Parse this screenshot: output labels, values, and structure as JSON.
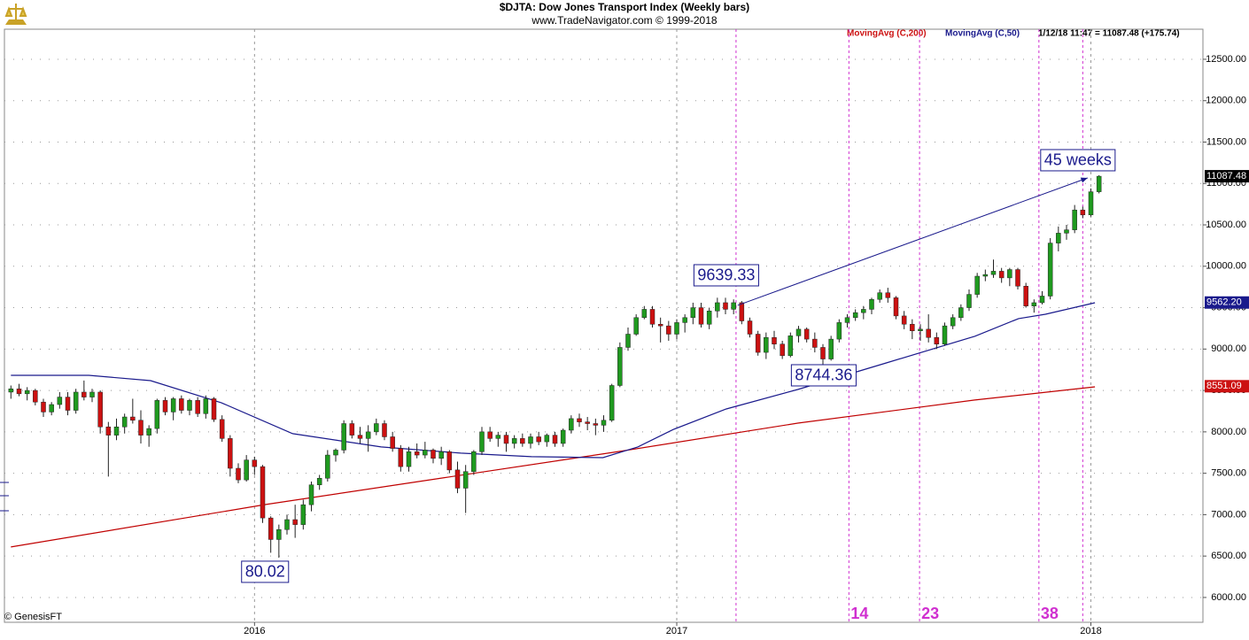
{
  "chart_data": {
    "type": "candlestick",
    "title": "$DJTA:  Dow Jones Transport Index  (Weekly bars)",
    "subtitle": "www.TradeNavigator.com © 1999-2018",
    "status": "1/12/18 11:47 = 11087.48 (+175.74)",
    "footer": "© GenesisFT",
    "up_color": "#1f9a1f",
    "down_color": "#cc1111",
    "grid": true,
    "xlim": [
      -0.8,
      146.8
    ],
    "xticks": [
      {
        "value": 30,
        "label": "2016"
      },
      {
        "value": 82,
        "label": "2017"
      },
      {
        "value": 133,
        "label": "2018"
      }
    ],
    "ylim": [
      5700,
      12863
    ],
    "yticks": [
      {
        "value": 6000,
        "label": "6000.00"
      },
      {
        "value": 6500,
        "label": "6500.00"
      },
      {
        "value": 7000,
        "label": "7000.00"
      },
      {
        "value": 7500,
        "label": "7500.00"
      },
      {
        "value": 8000,
        "label": "8000.00"
      },
      {
        "value": 8500,
        "label": "8500.00"
      },
      {
        "value": 9000,
        "label": "9000.00"
      },
      {
        "value": 9500,
        "label": "9500.00"
      },
      {
        "value": 10000,
        "label": "10000.00"
      },
      {
        "value": 10500,
        "label": "10500.00"
      },
      {
        "value": 11000,
        "label": "11000.00"
      },
      {
        "value": 11500,
        "label": "11500.00"
      },
      {
        "value": 12000,
        "label": "12000.00"
      },
      {
        "value": 12500,
        "label": "12500.00"
      }
    ],
    "x": [
      0,
      1,
      2,
      3,
      4,
      5,
      6,
      7,
      8,
      9,
      10,
      11,
      12,
      13,
      14,
      15,
      16,
      17,
      18,
      19,
      20,
      21,
      22,
      23,
      24,
      25,
      26,
      27,
      28,
      29,
      30,
      31,
      32,
      33,
      34,
      35,
      36,
      37,
      38,
      39,
      40,
      41,
      42,
      43,
      44,
      45,
      46,
      47,
      48,
      49,
      50,
      51,
      52,
      53,
      54,
      55,
      56,
      57,
      58,
      59,
      60,
      61,
      62,
      63,
      64,
      65,
      66,
      67,
      68,
      69,
      70,
      71,
      72,
      73,
      74,
      75,
      76,
      77,
      78,
      79,
      80,
      81,
      82,
      83,
      84,
      85,
      86,
      87,
      88,
      89,
      90,
      91,
      92,
      93,
      94,
      95,
      96,
      97,
      98,
      99,
      100,
      101,
      102,
      103,
      104,
      105,
      106,
      107,
      108,
      109,
      110,
      111,
      112,
      113,
      114,
      115,
      116,
      117,
      118,
      119,
      120,
      121,
      122,
      123,
      124,
      125,
      126,
      127,
      128,
      129,
      130,
      131,
      132,
      133,
      134
    ],
    "candles": [
      [
        8480,
        8560,
        8400,
        8520
      ],
      [
        8520,
        8580,
        8430,
        8460
      ],
      [
        8460,
        8540,
        8380,
        8500
      ],
      [
        8500,
        8520,
        8320,
        8360
      ],
      [
        8360,
        8400,
        8180,
        8240
      ],
      [
        8240,
        8360,
        8200,
        8330
      ],
      [
        8330,
        8480,
        8280,
        8420
      ],
      [
        8420,
        8480,
        8200,
        8260
      ],
      [
        8260,
        8520,
        8220,
        8480
      ],
      [
        8480,
        8620,
        8380,
        8420
      ],
      [
        8420,
        8520,
        8360,
        8480
      ],
      [
        8480,
        8500,
        7980,
        8060
      ],
      [
        8060,
        8120,
        7460,
        7960
      ],
      [
        7960,
        8160,
        7900,
        8060
      ],
      [
        8060,
        8220,
        7980,
        8180
      ],
      [
        8180,
        8400,
        8100,
        8140
      ],
      [
        8140,
        8260,
        7860,
        7960
      ],
      [
        7960,
        8080,
        7820,
        8040
      ],
      [
        8040,
        8400,
        7980,
        8380
      ],
      [
        8380,
        8420,
        8200,
        8240
      ],
      [
        8240,
        8420,
        8140,
        8400
      ],
      [
        8400,
        8440,
        8220,
        8260
      ],
      [
        8260,
        8400,
        8200,
        8380
      ],
      [
        8380,
        8420,
        8180,
        8220
      ],
      [
        8220,
        8440,
        8160,
        8400
      ],
      [
        8400,
        8420,
        8120,
        8150
      ],
      [
        8150,
        8200,
        7880,
        7920
      ],
      [
        7920,
        7960,
        7460,
        7560
      ],
      [
        7560,
        7620,
        7380,
        7420
      ],
      [
        7420,
        7720,
        7400,
        7660
      ],
      [
        7660,
        7700,
        7480,
        7580
      ],
      [
        7580,
        7600,
        6900,
        6960
      ],
      [
        6960,
        6980,
        6540,
        6700
      ],
      [
        6700,
        6880,
        6480,
        6820
      ],
      [
        6820,
        7000,
        6760,
        6940
      ],
      [
        6940,
        7120,
        6720,
        6880
      ],
      [
        6880,
        7180,
        6820,
        7120
      ],
      [
        7120,
        7400,
        7040,
        7360
      ],
      [
        7360,
        7480,
        7300,
        7440
      ],
      [
        7440,
        7780,
        7400,
        7720
      ],
      [
        7720,
        7800,
        7640,
        7780
      ],
      [
        7780,
        8140,
        7740,
        8100
      ],
      [
        8100,
        8140,
        7920,
        7960
      ],
      [
        7960,
        8060,
        7860,
        7920
      ],
      [
        7920,
        8080,
        7760,
        8000
      ],
      [
        8000,
        8160,
        7960,
        8100
      ],
      [
        8100,
        8140,
        7900,
        7940
      ],
      [
        7940,
        8000,
        7760,
        7800
      ],
      [
        7800,
        7840,
        7520,
        7580
      ],
      [
        7580,
        7820,
        7520,
        7760
      ],
      [
        7760,
        7860,
        7680,
        7720
      ],
      [
        7720,
        7880,
        7680,
        7780
      ],
      [
        7780,
        7800,
        7620,
        7680
      ],
      [
        7680,
        7820,
        7600,
        7760
      ],
      [
        7760,
        7780,
        7500,
        7540
      ],
      [
        7540,
        7640,
        7260,
        7320
      ],
      [
        7320,
        7600,
        7020,
        7520
      ],
      [
        7520,
        7780,
        7480,
        7760
      ],
      [
        7760,
        8060,
        7720,
        8000
      ],
      [
        8000,
        8060,
        7880,
        7920
      ],
      [
        7920,
        8000,
        7820,
        7960
      ],
      [
        7960,
        8000,
        7760,
        7860
      ],
      [
        7860,
        7960,
        7800,
        7920
      ],
      [
        7920,
        7980,
        7820,
        7860
      ],
      [
        7860,
        7980,
        7800,
        7940
      ],
      [
        7940,
        8000,
        7840,
        7880
      ],
      [
        7880,
        7980,
        7820,
        7960
      ],
      [
        7960,
        8000,
        7820,
        7860
      ],
      [
        7860,
        8040,
        7820,
        8020
      ],
      [
        8020,
        8200,
        7980,
        8160
      ],
      [
        8160,
        8220,
        8060,
        8120
      ],
      [
        8120,
        8180,
        8020,
        8100
      ],
      [
        8100,
        8160,
        7960,
        8080
      ],
      [
        8080,
        8200,
        8000,
        8140
      ],
      [
        8140,
        8580,
        8120,
        8560
      ],
      [
        8560,
        9080,
        8540,
        9020
      ],
      [
        9020,
        9260,
        8980,
        9180
      ],
      [
        9180,
        9420,
        9160,
        9380
      ],
      [
        9380,
        9520,
        9360,
        9480
      ],
      [
        9480,
        9520,
        9260,
        9300
      ],
      [
        9300,
        9380,
        9080,
        9280
      ],
      [
        9280,
        9340,
        9100,
        9180
      ],
      [
        9180,
        9360,
        9120,
        9320
      ],
      [
        9320,
        9420,
        9200,
        9380
      ],
      [
        9380,
        9560,
        9300,
        9500
      ],
      [
        9500,
        9560,
        9260,
        9300
      ],
      [
        9300,
        9500,
        9240,
        9460
      ],
      [
        9460,
        9620,
        9380,
        9560
      ],
      [
        9560,
        9620,
        9420,
        9480
      ],
      [
        9480,
        9600,
        9420,
        9560
      ],
      [
        9560,
        9580,
        9300,
        9340
      ],
      [
        9340,
        9380,
        9140,
        9180
      ],
      [
        9180,
        9220,
        8920,
        8960
      ],
      [
        8960,
        9200,
        8880,
        9140
      ],
      [
        9140,
        9220,
        9000,
        9060
      ],
      [
        9060,
        9100,
        8880,
        8920
      ],
      [
        8920,
        9200,
        8900,
        9160
      ],
      [
        9160,
        9280,
        9080,
        9240
      ],
      [
        9240,
        9260,
        9080,
        9120
      ],
      [
        9120,
        9200,
        8960,
        9020
      ],
      [
        9020,
        9060,
        8760,
        8880
      ],
      [
        8880,
        9160,
        8860,
        9120
      ],
      [
        9120,
        9360,
        9080,
        9320
      ],
      [
        9320,
        9420,
        9260,
        9380
      ],
      [
        9380,
        9480,
        9340,
        9440
      ],
      [
        9440,
        9520,
        9360,
        9480
      ],
      [
        9480,
        9620,
        9420,
        9600
      ],
      [
        9600,
        9720,
        9560,
        9680
      ],
      [
        9680,
        9740,
        9560,
        9620
      ],
      [
        9620,
        9640,
        9360,
        9400
      ],
      [
        9400,
        9460,
        9240,
        9300
      ],
      [
        9300,
        9360,
        9120,
        9220
      ],
      [
        9220,
        9300,
        9100,
        9240
      ],
      [
        9240,
        9420,
        9080,
        9140
      ],
      [
        9140,
        9200,
        9000,
        9060
      ],
      [
        9060,
        9320,
        9040,
        9280
      ],
      [
        9280,
        9420,
        9240,
        9380
      ],
      [
        9380,
        9540,
        9340,
        9500
      ],
      [
        9500,
        9720,
        9460,
        9660
      ],
      [
        9660,
        9920,
        9620,
        9880
      ],
      [
        9880,
        9960,
        9820,
        9900
      ],
      [
        9900,
        10080,
        9860,
        9940
      ],
      [
        9940,
        9980,
        9800,
        9860
      ],
      [
        9860,
        9980,
        9760,
        9960
      ],
      [
        9960,
        9980,
        9720,
        9760
      ],
      [
        9760,
        9800,
        9500,
        9520
      ],
      [
        9520,
        9600,
        9440,
        9560
      ],
      [
        9560,
        9700,
        9540,
        9640
      ],
      [
        9640,
        10340,
        9600,
        10280
      ],
      [
        10280,
        10480,
        10180,
        10400
      ],
      [
        10400,
        10500,
        10320,
        10440
      ],
      [
        10440,
        10740,
        10400,
        10680
      ],
      [
        10680,
        10720,
        10580,
        10620
      ],
      [
        10620,
        10940,
        10600,
        10900
      ],
      [
        10900,
        11100,
        10880,
        11087.48
      ]
    ],
    "lines": [
      {
        "name": "MovingAvg (C,200)",
        "color": "#c00000",
        "x": [
          0,
          31.4,
          53.2,
          75,
          96.9,
          118.7,
          133.5
        ],
        "values": [
          6610,
          7123,
          7444,
          7764,
          8106,
          8384,
          8544
        ]
      },
      {
        "name": "MovingAvg (C,50)",
        "color": "#1a1a8c",
        "x": [
          0,
          9.6,
          17.2,
          25.9,
          34.7,
          45.6,
          55.4,
          64.1,
          72.9,
          77.2,
          81.6,
          88.1,
          96.9,
          107.8,
          118.7,
          124.1,
          127.4,
          133.5
        ],
        "values": [
          8683,
          8683,
          8619,
          8352,
          7978,
          7818,
          7743,
          7700,
          7689,
          7818,
          8030,
          8277,
          8512,
          8833,
          9154,
          9368,
          9421,
          9560
        ]
      }
    ],
    "flags": [
      {
        "value": 11087.48,
        "label": "11087.48",
        "color": "#000000"
      },
      {
        "value": 9562.2,
        "label": "9562.20",
        "color": "#1a1a8c"
      },
      {
        "value": 8551.09,
        "label": "8551.09",
        "color": "#cc1111"
      }
    ],
    "annotations": [
      {
        "text": "9639.33",
        "x": 88.1,
        "y": 9891
      },
      {
        "text": "8744.36",
        "x": 100.1,
        "y": 8683
      },
      {
        "text": "80.02",
        "x": 31.3,
        "y": 6310
      },
      {
        "text": "45 weeks",
        "x": 131.4,
        "y": 11281
      }
    ],
    "arrow": {
      "x": [
        89.5,
        132.6
      ],
      "y": [
        9528,
        11067
      ]
    },
    "vlines": [
      {
        "x": 89.3
      },
      {
        "x": 103.2,
        "label": "14"
      },
      {
        "x": 111.9,
        "label": "23"
      },
      {
        "x": 126.6,
        "label": "38"
      },
      {
        "x": 132
      }
    ]
  }
}
